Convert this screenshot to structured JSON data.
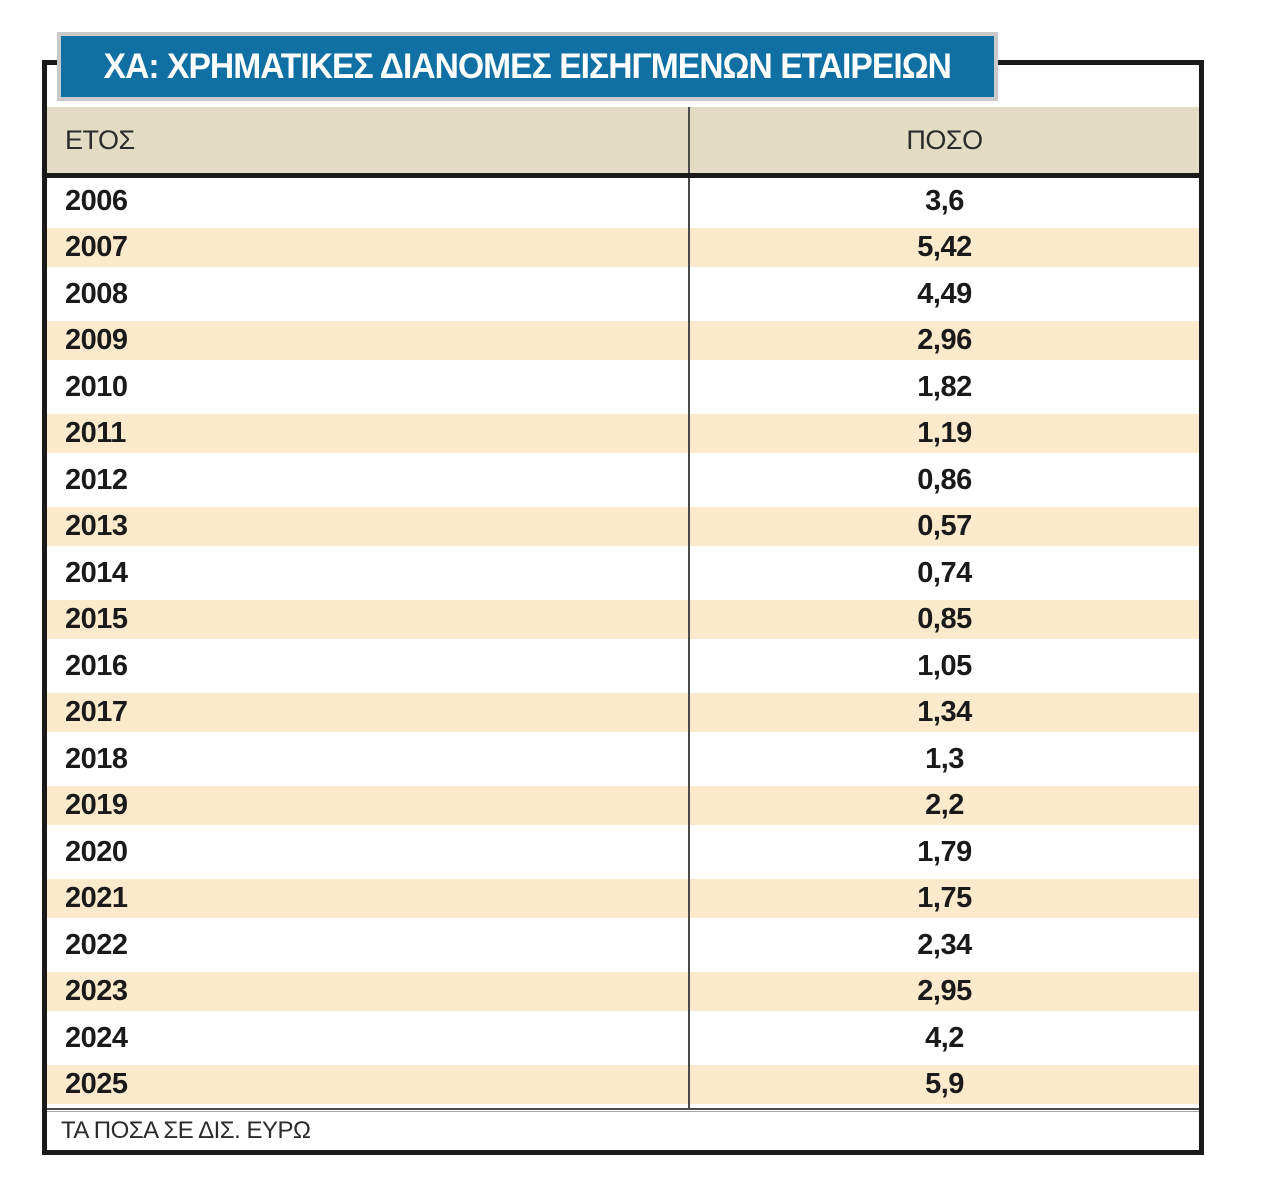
{
  "banner": {
    "title": "ΧΑ: ΧΡΗΜΑΤΙΚΕΣ ΔΙΑΝΟΜΕΣ ΕΙΣΗΓΜΕΝΩΝ ΕΤΑΙΡΕΙΩΝ"
  },
  "table": {
    "columns": [
      {
        "key": "year",
        "label": "ΕΤΟΣ"
      },
      {
        "key": "amount",
        "label": "ΠΟΣΟ"
      }
    ],
    "rows": [
      {
        "year": "2006",
        "amount": "3,6"
      },
      {
        "year": "2007",
        "amount": "5,42"
      },
      {
        "year": "2008",
        "amount": "4,49"
      },
      {
        "year": "2009",
        "amount": "2,96"
      },
      {
        "year": "2010",
        "amount": "1,82"
      },
      {
        "year": "2011",
        "amount": "1,19"
      },
      {
        "year": "2012",
        "amount": "0,86"
      },
      {
        "year": "2013",
        "amount": "0,57"
      },
      {
        "year": "2014",
        "amount": "0,74"
      },
      {
        "year": "2015",
        "amount": "0,85"
      },
      {
        "year": "2016",
        "amount": "1,05"
      },
      {
        "year": "2017",
        "amount": "1,34"
      },
      {
        "year": "2018",
        "amount": "1,3"
      },
      {
        "year": "2019",
        "amount": "2,2"
      },
      {
        "year": "2020",
        "amount": "1,79"
      },
      {
        "year": "2021",
        "amount": "1,75"
      },
      {
        "year": "2022",
        "amount": "2,34"
      },
      {
        "year": "2023",
        "amount": "2,95"
      },
      {
        "year": "2024",
        "amount": "4,2"
      },
      {
        "year": "2025",
        "amount": "5,9"
      }
    ]
  },
  "footnote": "ΤΑ ΠΟΣΑ ΣΕ ΔΙΣ. ΕΥΡΩ",
  "colors": {
    "banner_blue": "#1170a3",
    "banner_outline": "#c9c9c9",
    "header_beige": "#e3dbc4",
    "stripe_peach": "#fdeacd",
    "frame_black": "#1a1a1a"
  },
  "chart_data": {
    "type": "table",
    "title": "ΧΑ: ΧΡΗΜΑΤΙΚΕΣ ΔΙΑΝΟΜΕΣ ΕΙΣΗΓΜΕΝΩΝ ΕΤΑΙΡΕΙΩΝ",
    "columns": [
      "ΕΤΟΣ",
      "ΠΟΣΟ"
    ],
    "categories": [
      "2006",
      "2007",
      "2008",
      "2009",
      "2010",
      "2011",
      "2012",
      "2013",
      "2014",
      "2015",
      "2016",
      "2017",
      "2018",
      "2019",
      "2020",
      "2021",
      "2022",
      "2023",
      "2024",
      "2025"
    ],
    "values": [
      3.6,
      5.42,
      4.49,
      2.96,
      1.82,
      1.19,
      0.86,
      0.57,
      0.74,
      0.85,
      1.05,
      1.34,
      1.3,
      2.2,
      1.79,
      1.75,
      2.34,
      2.95,
      4.2,
      5.9
    ],
    "note": "ΤΑ ΠΟΣΑ ΣΕ ΔΙΣ. ΕΥΡΩ",
    "layout": {
      "striped_rows": true,
      "stripe_start_index": 1
    }
  }
}
